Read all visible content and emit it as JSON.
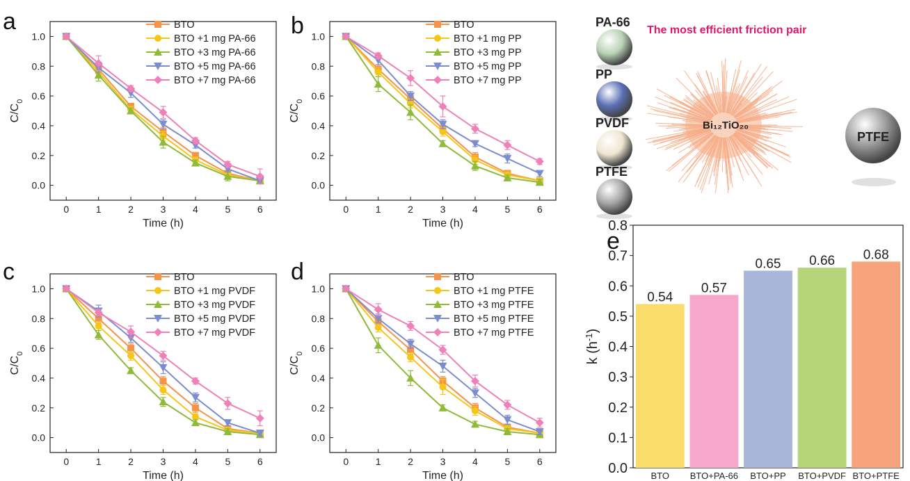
{
  "panels": {
    "a": "a",
    "b": "b",
    "c": "c",
    "d": "d",
    "e": "e"
  },
  "colors": {
    "BTO": "#f7924a",
    "s1": "#f5c518",
    "s3": "#8fba3a",
    "s5": "#7b8ccf",
    "s7": "#f080b8"
  },
  "illustration": {
    "title": "The most efficient friction pair",
    "title_color": "#e0176a",
    "center_label": "Bi₁₂TiO₂₀",
    "right_sphere_label": "PTFE",
    "spheres": [
      {
        "label": "PA-66",
        "color": "#b9d3b5",
        "icon": "sphere-icon"
      },
      {
        "label": "PP",
        "color": "#5b6fb5",
        "icon": "sphere-icon"
      },
      {
        "label": "PVDF",
        "color": "#efe6d2",
        "icon": "sphere-icon"
      },
      {
        "label": "PTFE",
        "color": "#a8a8a8",
        "icon": "sphere-icon"
      }
    ],
    "urchin_color": "#f6ae8a"
  },
  "chart_data": [
    {
      "panel": "a",
      "type": "line",
      "xlabel": "Time (h)",
      "ylabel": "C/C0",
      "xlim": [
        -0.5,
        6.5
      ],
      "ylim": [
        -0.1,
        1.1
      ],
      "x": [
        0,
        1,
        2,
        3,
        4,
        5,
        6
      ],
      "x_ticks": [
        "0",
        "1",
        "2",
        "3",
        "4",
        "5",
        "6"
      ],
      "y_ticks": [
        "0.0",
        "0.2",
        "0.4",
        "0.6",
        "0.8",
        "1.0"
      ],
      "series": [
        {
          "name": "BTO",
          "marker": "square",
          "values": [
            1.0,
            0.78,
            0.53,
            0.36,
            0.2,
            0.08,
            0.03
          ],
          "err": [
            0,
            0.03,
            0.02,
            0.03,
            0.02,
            0.02,
            0.02
          ]
        },
        {
          "name": "BTO +1 mg PA-66",
          "marker": "circle",
          "values": [
            1.0,
            0.76,
            0.51,
            0.33,
            0.17,
            0.07,
            0.03
          ],
          "err": [
            0,
            0.03,
            0.02,
            0.03,
            0.02,
            0.02,
            0.02
          ]
        },
        {
          "name": "BTO +3 mg PA-66",
          "marker": "triangle-up",
          "values": [
            1.0,
            0.74,
            0.5,
            0.29,
            0.15,
            0.06,
            0.03
          ],
          "err": [
            0,
            0.04,
            0.02,
            0.04,
            0.02,
            0.03,
            0.02
          ]
        },
        {
          "name": "BTO +5 mg PA-66",
          "marker": "triangle-down",
          "values": [
            1.0,
            0.79,
            0.62,
            0.41,
            0.27,
            0.11,
            0.03
          ],
          "err": [
            0,
            0.03,
            0.03,
            0.03,
            0.02,
            0.02,
            0.02
          ]
        },
        {
          "name": "BTO +7 mg PA-66",
          "marker": "diamond",
          "values": [
            1.0,
            0.82,
            0.65,
            0.49,
            0.3,
            0.14,
            0.06
          ],
          "err": [
            0,
            0.05,
            0.02,
            0.04,
            0.02,
            0.02,
            0.05
          ]
        }
      ]
    },
    {
      "panel": "b",
      "type": "line",
      "xlabel": "Time (h)",
      "ylabel": "C/C0",
      "xlim": [
        -0.5,
        6.5
      ],
      "ylim": [
        -0.1,
        1.1
      ],
      "x": [
        0,
        1,
        2,
        3,
        4,
        5,
        6
      ],
      "x_ticks": [
        "0",
        "1",
        "2",
        "3",
        "4",
        "5",
        "6"
      ],
      "y_ticks": [
        "0.0",
        "0.2",
        "0.4",
        "0.6",
        "0.8",
        "1.0"
      ],
      "series": [
        {
          "name": "BTO",
          "marker": "square",
          "values": [
            1.0,
            0.78,
            0.58,
            0.38,
            0.19,
            0.08,
            0.03
          ],
          "err": [
            0,
            0.03,
            0.03,
            0.03,
            0.03,
            0.02,
            0.02
          ]
        },
        {
          "name": "BTO +1 mg PP",
          "marker": "circle",
          "values": [
            1.0,
            0.76,
            0.55,
            0.36,
            0.17,
            0.07,
            0.03
          ],
          "err": [
            0,
            0.03,
            0.03,
            0.03,
            0.03,
            0.02,
            0.02
          ]
        },
        {
          "name": "BTO +3 mg PP",
          "marker": "triangle-up",
          "values": [
            1.0,
            0.68,
            0.49,
            0.28,
            0.13,
            0.05,
            0.02
          ],
          "err": [
            0,
            0.05,
            0.05,
            0.02,
            0.03,
            0.02,
            0.02
          ]
        },
        {
          "name": "BTO +5 mg PP",
          "marker": "triangle-down",
          "values": [
            1.0,
            0.84,
            0.6,
            0.41,
            0.28,
            0.18,
            0.08
          ],
          "err": [
            0,
            0.03,
            0.03,
            0.03,
            0.02,
            0.03,
            0.02
          ]
        },
        {
          "name": "BTO +7 mg PP",
          "marker": "diamond",
          "values": [
            1.0,
            0.87,
            0.72,
            0.53,
            0.38,
            0.27,
            0.16
          ],
          "err": [
            0,
            0.02,
            0.05,
            0.07,
            0.03,
            0.03,
            0.02
          ]
        }
      ]
    },
    {
      "panel": "c",
      "type": "line",
      "xlabel": "Time (h)",
      "ylabel": "C/C0",
      "xlim": [
        -0.5,
        6.5
      ],
      "ylim": [
        -0.1,
        1.1
      ],
      "x": [
        0,
        1,
        2,
        3,
        4,
        5,
        6
      ],
      "x_ticks": [
        "0",
        "1",
        "2",
        "3",
        "4",
        "5",
        "6"
      ],
      "y_ticks": [
        "0.0",
        "0.2",
        "0.4",
        "0.6",
        "0.8",
        "1.0"
      ],
      "series": [
        {
          "name": "BTO",
          "marker": "square",
          "values": [
            1.0,
            0.8,
            0.6,
            0.38,
            0.2,
            0.06,
            0.03
          ],
          "err": [
            0,
            0.03,
            0.03,
            0.03,
            0.03,
            0.02,
            0.02
          ]
        },
        {
          "name": "BTO +1 mg PVDF",
          "marker": "circle",
          "values": [
            1.0,
            0.75,
            0.55,
            0.32,
            0.14,
            0.05,
            0.03
          ],
          "err": [
            0,
            0.03,
            0.03,
            0.03,
            0.02,
            0.02,
            0.02
          ]
        },
        {
          "name": "BTO +3 mg PVDF",
          "marker": "triangle-up",
          "values": [
            1.0,
            0.69,
            0.45,
            0.24,
            0.1,
            0.04,
            0.02
          ],
          "err": [
            0,
            0.03,
            0.02,
            0.03,
            0.02,
            0.02,
            0.02
          ]
        },
        {
          "name": "BTO +5 mg PVDF",
          "marker": "triangle-down",
          "values": [
            1.0,
            0.85,
            0.67,
            0.47,
            0.27,
            0.1,
            0.03
          ],
          "err": [
            0,
            0.04,
            0.03,
            0.04,
            0.03,
            0.02,
            0.02
          ]
        },
        {
          "name": "BTO +7 mg PVDF",
          "marker": "diamond",
          "values": [
            1.0,
            0.84,
            0.71,
            0.55,
            0.38,
            0.23,
            0.13
          ],
          "err": [
            0,
            0.02,
            0.04,
            0.03,
            0.02,
            0.04,
            0.05
          ]
        }
      ]
    },
    {
      "panel": "d",
      "type": "line",
      "xlabel": "Time (h)",
      "ylabel": "C/C0",
      "xlim": [
        -0.5,
        6.5
      ],
      "ylim": [
        -0.1,
        1.1
      ],
      "x": [
        0,
        1,
        2,
        3,
        4,
        5,
        6
      ],
      "x_ticks": [
        "0",
        "1",
        "2",
        "3",
        "4",
        "5",
        "6"
      ],
      "y_ticks": [
        "0.0",
        "0.2",
        "0.4",
        "0.6",
        "0.8",
        "1.0"
      ],
      "series": [
        {
          "name": "BTO",
          "marker": "square",
          "values": [
            1.0,
            0.78,
            0.59,
            0.38,
            0.2,
            0.07,
            0.03
          ],
          "err": [
            0,
            0.03,
            0.03,
            0.03,
            0.03,
            0.02,
            0.02
          ]
        },
        {
          "name": "BTO +1 mg PTFE",
          "marker": "circle",
          "values": [
            1.0,
            0.74,
            0.54,
            0.34,
            0.18,
            0.06,
            0.03
          ],
          "err": [
            0,
            0.03,
            0.03,
            0.05,
            0.03,
            0.02,
            0.02
          ]
        },
        {
          "name": "BTO +3 mg PTFE",
          "marker": "triangle-up",
          "values": [
            1.0,
            0.62,
            0.4,
            0.2,
            0.09,
            0.04,
            0.02
          ],
          "err": [
            0,
            0.05,
            0.05,
            0.02,
            0.02,
            0.02,
            0.02
          ]
        },
        {
          "name": "BTO +5 mg PTFE",
          "marker": "triangle-down",
          "values": [
            1.0,
            0.8,
            0.63,
            0.48,
            0.3,
            0.12,
            0.04
          ],
          "err": [
            0,
            0.03,
            0.03,
            0.04,
            0.03,
            0.03,
            0.02
          ]
        },
        {
          "name": "BTO +7 mg PTFE",
          "marker": "diamond",
          "values": [
            1.0,
            0.86,
            0.75,
            0.59,
            0.38,
            0.22,
            0.1
          ],
          "err": [
            0,
            0.04,
            0.03,
            0.03,
            0.04,
            0.03,
            0.03
          ]
        }
      ]
    },
    {
      "panel": "e",
      "type": "bar",
      "categories": [
        "BTO",
        "BTO+PA-66",
        "BTO+PP",
        "BTO+PVDF",
        "BTO+PTFE"
      ],
      "values": [
        0.54,
        0.57,
        0.65,
        0.66,
        0.68
      ],
      "value_labels": [
        "0.54",
        "0.57",
        "0.65",
        "0.66",
        "0.68"
      ],
      "colors": [
        "#f9dc6a",
        "#f8a6cb",
        "#a9b5d9",
        "#b6d47a",
        "#f7a47c"
      ],
      "ylabel": "k (h-1)",
      "ylim": [
        0.0,
        0.8
      ],
      "y_ticks": [
        "0.0",
        "0.1",
        "0.2",
        "0.3",
        "0.4",
        "0.5",
        "0.6",
        "0.7",
        "0.8"
      ]
    }
  ]
}
